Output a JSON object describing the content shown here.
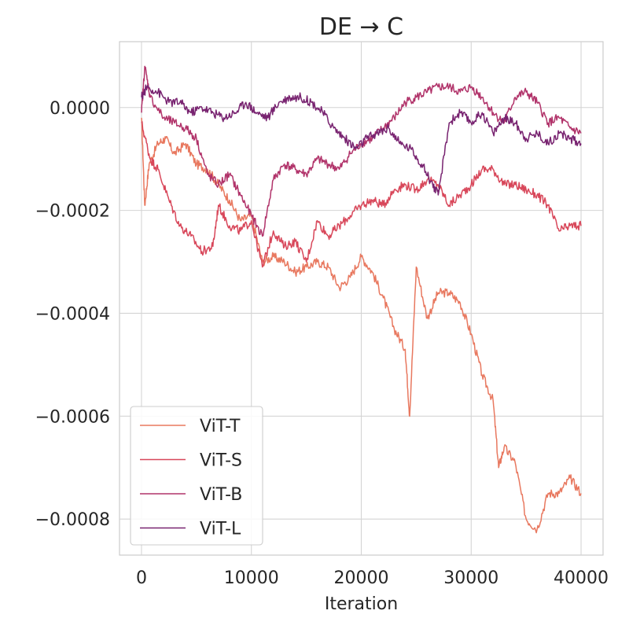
{
  "chart_data": {
    "type": "line",
    "title": "DE → C",
    "xlabel": "Iteration",
    "ylabel": "",
    "xlim": [
      -2000,
      42000
    ],
    "ylim": [
      -0.00087,
      0.000128
    ],
    "x_ticks": [
      0,
      10000,
      20000,
      30000,
      40000
    ],
    "x_tick_labels": [
      "0",
      "10000",
      "20000",
      "30000",
      "40000"
    ],
    "y_ticks": [
      0.0,
      -0.0002,
      -0.0004,
      -0.0006,
      -0.0008
    ],
    "y_tick_labels": [
      "0.0000",
      "−0.0002",
      "−0.0004",
      "−0.0006",
      "−0.0008"
    ],
    "grid": true,
    "legend_position": "lower-left",
    "series": [
      {
        "name": "ViT-T",
        "color": "#e8785f",
        "points": [
          [
            0,
            -2e-05
          ],
          [
            300,
            -0.00019
          ],
          [
            700,
            -0.00011
          ],
          [
            1500,
            -7e-05
          ],
          [
            2200,
            -6e-05
          ],
          [
            3000,
            -9e-05
          ],
          [
            4000,
            -7e-05
          ],
          [
            5000,
            -0.00011
          ],
          [
            6000,
            -0.00012
          ],
          [
            7000,
            -0.00015
          ],
          [
            8000,
            -0.00018
          ],
          [
            9000,
            -0.00022
          ],
          [
            10000,
            -0.00021
          ],
          [
            11000,
            -0.0003
          ],
          [
            12000,
            -0.00029
          ],
          [
            13000,
            -0.0003
          ],
          [
            14000,
            -0.00032
          ],
          [
            15000,
            -0.00031
          ],
          [
            16000,
            -0.0003
          ],
          [
            17000,
            -0.00031
          ],
          [
            18000,
            -0.00035
          ],
          [
            19000,
            -0.00033
          ],
          [
            20000,
            -0.00029
          ],
          [
            21000,
            -0.00032
          ],
          [
            22000,
            -0.00037
          ],
          [
            23000,
            -0.00043
          ],
          [
            24000,
            -0.00047
          ],
          [
            24400,
            -0.0006
          ],
          [
            25000,
            -0.00031
          ],
          [
            26000,
            -0.00041
          ],
          [
            27000,
            -0.00036
          ],
          [
            28000,
            -0.00036
          ],
          [
            29000,
            -0.00038
          ],
          [
            30000,
            -0.00044
          ],
          [
            31000,
            -0.00052
          ],
          [
            32000,
            -0.00057
          ],
          [
            32500,
            -0.0007
          ],
          [
            33000,
            -0.00066
          ],
          [
            34000,
            -0.00069
          ],
          [
            35000,
            -0.0008
          ],
          [
            36000,
            -0.00082
          ],
          [
            37000,
            -0.00075
          ],
          [
            38000,
            -0.00075
          ],
          [
            39000,
            -0.00072
          ],
          [
            40000,
            -0.00075
          ]
        ]
      },
      {
        "name": "ViT-S",
        "color": "#d8475a",
        "points": [
          [
            0,
            -3e-05
          ],
          [
            800,
            -0.0001
          ],
          [
            1500,
            -0.00012
          ],
          [
            2500,
            -0.00018
          ],
          [
            3500,
            -0.00023
          ],
          [
            4500,
            -0.00025
          ],
          [
            5500,
            -0.00028
          ],
          [
            6500,
            -0.00027
          ],
          [
            7000,
            -0.00019
          ],
          [
            8000,
            -0.00023
          ],
          [
            9000,
            -0.00024
          ],
          [
            10000,
            -0.00022
          ],
          [
            11000,
            -0.00031
          ],
          [
            12000,
            -0.00024
          ],
          [
            13000,
            -0.00027
          ],
          [
            14000,
            -0.00026
          ],
          [
            15000,
            -0.0003
          ],
          [
            16000,
            -0.00022
          ],
          [
            17000,
            -0.00025
          ],
          [
            18000,
            -0.00023
          ],
          [
            19000,
            -0.00021
          ],
          [
            20000,
            -0.00019
          ],
          [
            21000,
            -0.00018
          ],
          [
            22000,
            -0.00019
          ],
          [
            23000,
            -0.00016
          ],
          [
            24000,
            -0.00015
          ],
          [
            25000,
            -0.00016
          ],
          [
            26000,
            -0.00014
          ],
          [
            27000,
            -0.00015
          ],
          [
            28000,
            -0.00019
          ],
          [
            29000,
            -0.00017
          ],
          [
            30000,
            -0.00015
          ],
          [
            31000,
            -0.00012
          ],
          [
            32000,
            -0.00012
          ],
          [
            33000,
            -0.00015
          ],
          [
            34000,
            -0.00015
          ],
          [
            35000,
            -0.00016
          ],
          [
            36000,
            -0.00017
          ],
          [
            37000,
            -0.00019
          ],
          [
            38000,
            -0.00024
          ],
          [
            39000,
            -0.00023
          ],
          [
            40000,
            -0.00023
          ]
        ]
      },
      {
        "name": "ViT-B",
        "color": "#b1336a",
        "points": [
          [
            0,
            -1e-05
          ],
          [
            300,
            8e-05
          ],
          [
            800,
            2e-05
          ],
          [
            2000,
            -2e-05
          ],
          [
            3000,
            -3e-05
          ],
          [
            4000,
            -4e-05
          ],
          [
            5000,
            -6e-05
          ],
          [
            6000,
            -0.00013
          ],
          [
            7000,
            -0.00015
          ],
          [
            8000,
            -0.00013
          ],
          [
            9000,
            -0.00017
          ],
          [
            10000,
            -0.00021
          ],
          [
            11000,
            -0.00025
          ],
          [
            12000,
            -0.00014
          ],
          [
            13000,
            -0.00011
          ],
          [
            14000,
            -0.00012
          ],
          [
            15000,
            -0.00013
          ],
          [
            16000,
            -0.0001
          ],
          [
            17000,
            -0.00011
          ],
          [
            18000,
            -0.00012
          ],
          [
            19000,
            -9e-05
          ],
          [
            20000,
            -7e-05
          ],
          [
            21000,
            -6e-05
          ],
          [
            22000,
            -4e-05
          ],
          [
            23000,
            -2e-05
          ],
          [
            24000,
            1e-05
          ],
          [
            25000,
            2e-05
          ],
          [
            26000,
            3e-05
          ],
          [
            27000,
            4e-05
          ],
          [
            28000,
            4e-05
          ],
          [
            29000,
            3e-05
          ],
          [
            30000,
            4e-05
          ],
          [
            31000,
            2e-05
          ],
          [
            32000,
            -1e-05
          ],
          [
            33000,
            -3e-05
          ],
          [
            34000,
            2e-05
          ],
          [
            35000,
            3e-05
          ],
          [
            36000,
            1e-05
          ],
          [
            37000,
            -3e-05
          ],
          [
            38000,
            -2e-05
          ],
          [
            39000,
            -4e-05
          ],
          [
            40000,
            -5e-05
          ]
        ]
      },
      {
        "name": "ViT-L",
        "color": "#782370",
        "points": [
          [
            0,
            2e-05
          ],
          [
            500,
            4e-05
          ],
          [
            1500,
            3e-05
          ],
          [
            2500,
            1e-05
          ],
          [
            3500,
            1e-05
          ],
          [
            4500,
            -1e-05
          ],
          [
            5500,
            0.0
          ],
          [
            6500,
            -1e-05
          ],
          [
            7500,
            -2e-05
          ],
          [
            8500,
            -1e-05
          ],
          [
            9500,
            1e-05
          ],
          [
            10500,
            -1e-05
          ],
          [
            11500,
            -2e-05
          ],
          [
            12500,
            1e-05
          ],
          [
            13500,
            2e-05
          ],
          [
            14500,
            2e-05
          ],
          [
            15500,
            1e-05
          ],
          [
            16500,
            -1e-05
          ],
          [
            17500,
            -4e-05
          ],
          [
            18500,
            -6e-05
          ],
          [
            19500,
            -8e-05
          ],
          [
            20500,
            -6e-05
          ],
          [
            21500,
            -5e-05
          ],
          [
            22500,
            -4e-05
          ],
          [
            23500,
            -7e-05
          ],
          [
            24500,
            -8e-05
          ],
          [
            25500,
            -0.00011
          ],
          [
            26500,
            -0.00015
          ],
          [
            27000,
            -0.00017
          ],
          [
            28000,
            -3e-05
          ],
          [
            29000,
            -1e-05
          ],
          [
            30000,
            -3e-05
          ],
          [
            31000,
            -1e-05
          ],
          [
            32000,
            -5e-05
          ],
          [
            33000,
            -2e-05
          ],
          [
            34000,
            -3e-05
          ],
          [
            35000,
            -6e-05
          ],
          [
            36000,
            -5e-05
          ],
          [
            37000,
            -7e-05
          ],
          [
            38000,
            -5e-05
          ],
          [
            39000,
            -6e-05
          ],
          [
            40000,
            -7e-05
          ]
        ]
      }
    ]
  }
}
